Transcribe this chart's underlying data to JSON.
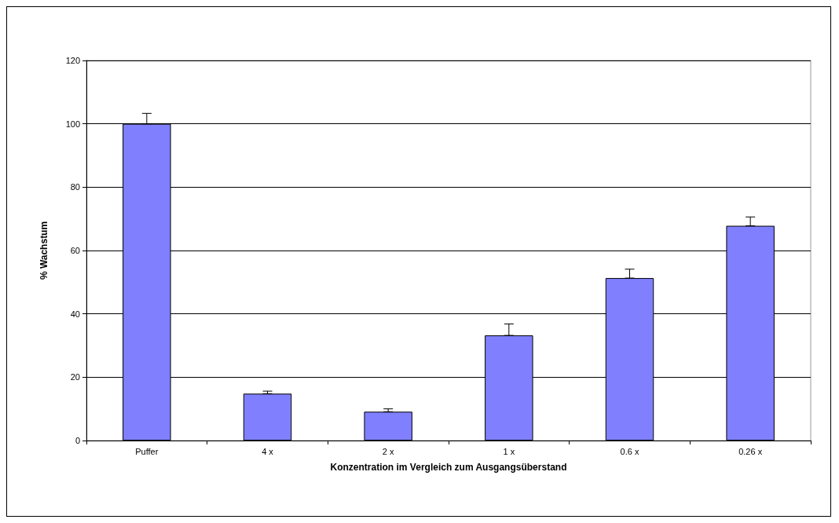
{
  "chart_data": {
    "type": "bar",
    "xlabel": "Konzentration im Vergleich zum Ausgangsüberstand",
    "ylabel": "% Wachstum",
    "categories": [
      "Puffer",
      "4 x",
      "2 x",
      "1 x",
      "0.6 x",
      "0.26 x"
    ],
    "values": [
      100,
      14.8,
      9.1,
      33.2,
      51.3,
      67.8
    ],
    "errors": [
      [
        100,
        103.3
      ],
      [
        14.8,
        15.6
      ],
      [
        9.1,
        10.0
      ],
      [
        33.2,
        36.8
      ],
      [
        51.3,
        54.1
      ],
      [
        67.8,
        70.6
      ]
    ],
    "color": "#8080ff",
    "ylim": [
      0,
      120
    ],
    "yticks": [
      0,
      20,
      40,
      60,
      80,
      100,
      120
    ],
    "grid": "y"
  }
}
